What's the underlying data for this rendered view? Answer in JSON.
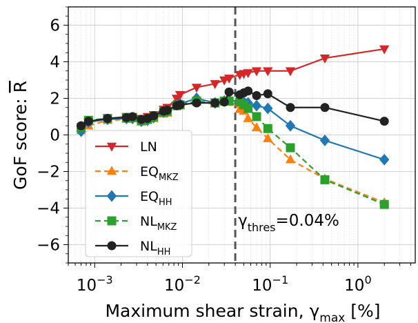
{
  "chart_data": {
    "type": "line",
    "title": "",
    "xlabel": {
      "main": "Maximum shear strain, γ",
      "sub": "max",
      "tail": " [%]"
    },
    "ylabel": {
      "main": "GoF score: ",
      "symbol": "R"
    },
    "xscale": "log",
    "xlim": [
      0.0005,
      4.5
    ],
    "ylim": [
      -7,
      7
    ],
    "yticks": [
      -6,
      -4,
      -2,
      0,
      2,
      4,
      6
    ],
    "ytick_labels": [
      "−6",
      "−4",
      "−2",
      "0",
      "2",
      "4",
      "6"
    ],
    "xticks": [
      0.001,
      0.01,
      0.1,
      1
    ],
    "xtick_labels": [
      {
        "base": "10",
        "exp": "−3"
      },
      {
        "base": "10",
        "exp": "−2"
      },
      {
        "base": "10",
        "exp": "−1"
      },
      {
        "base": "10",
        "exp": "0"
      }
    ],
    "grid": true,
    "legend_position": "lower-left",
    "x": [
      0.0007,
      0.00085,
      0.0014,
      0.0023,
      0.0027,
      0.0034,
      0.004,
      0.0047,
      0.0061,
      0.0067,
      0.0086,
      0.0094,
      0.0145,
      0.0235,
      0.03,
      0.034,
      0.045,
      0.05,
      0.056,
      0.07,
      0.094,
      0.17,
      0.42,
      2.0
    ],
    "series": [
      {
        "name": {
          "main": "LN",
          "sub": ""
        },
        "color": "#d62728",
        "marker": "triangle-down",
        "dashed": false,
        "values": [
          0.3,
          0.7,
          0.9,
          1.0,
          1.0,
          0.9,
          1.0,
          1.1,
          1.4,
          1.5,
          2.0,
          2.2,
          2.6,
          2.8,
          3.0,
          3.1,
          3.3,
          3.35,
          3.4,
          3.5,
          3.5,
          3.5,
          4.2,
          4.7
        ]
      },
      {
        "name": {
          "main": "EQ",
          "sub": "MKZ"
        },
        "color": "#ff7f0e",
        "marker": "triangle-up",
        "dashed": true,
        "values": [
          0.25,
          0.5,
          0.8,
          0.85,
          0.9,
          0.7,
          0.8,
          0.9,
          1.15,
          1.2,
          1.55,
          1.6,
          1.8,
          1.7,
          1.9,
          1.9,
          1.4,
          1.3,
          0.9,
          0.4,
          -0.2,
          -1.35,
          -2.4,
          -3.7
        ]
      },
      {
        "name": {
          "main": "EQ",
          "sub": "HH"
        },
        "color": "#1f77b4",
        "marker": "diamond",
        "dashed": false,
        "values": [
          0.2,
          0.7,
          0.85,
          0.9,
          0.9,
          0.75,
          0.8,
          0.95,
          1.25,
          1.3,
          1.65,
          1.7,
          2.0,
          1.75,
          1.85,
          1.9,
          1.85,
          1.8,
          1.75,
          1.6,
          1.45,
          0.5,
          -0.3,
          -1.35
        ]
      },
      {
        "name": {
          "main": "NL",
          "sub": "MKZ"
        },
        "color": "#2ca02c",
        "marker": "square",
        "dashed": true,
        "values": [
          0.4,
          0.8,
          0.9,
          0.95,
          0.95,
          0.8,
          0.85,
          1.0,
          1.25,
          1.3,
          1.6,
          1.65,
          1.85,
          1.75,
          1.85,
          1.85,
          1.8,
          1.65,
          1.45,
          1.0,
          0.35,
          -0.7,
          -2.45,
          -3.8
        ]
      },
      {
        "name": {
          "main": "NL",
          "sub": "HH"
        },
        "color": "#222222",
        "marker": "circle",
        "dashed": false,
        "values": [
          0.5,
          0.75,
          0.9,
          0.95,
          1.0,
          0.85,
          0.9,
          1.05,
          1.3,
          1.35,
          1.6,
          1.65,
          1.75,
          1.75,
          1.8,
          2.35,
          2.2,
          2.3,
          2.4,
          2.15,
          2.25,
          1.5,
          1.5,
          0.75
        ]
      }
    ],
    "annotations": [
      {
        "type": "vline",
        "x": 0.04,
        "color": "#555555",
        "style": "dashed",
        "label": {
          "main": "γ",
          "sub": "thres",
          "tail": "=0.04%"
        }
      }
    ]
  }
}
